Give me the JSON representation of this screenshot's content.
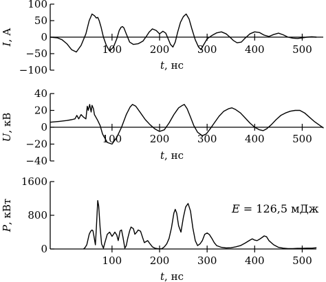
{
  "chart_data": [
    {
      "type": "line",
      "ylabel": "I, А",
      "xlabel": "t, нс",
      "xlim": [
        -30,
        550
      ],
      "ylim": [
        -100,
        100
      ],
      "xticks": [
        100,
        200,
        300,
        400,
        500
      ],
      "yticks": [
        -100,
        -50,
        0,
        50,
        100
      ],
      "ytick_labels": [
        "−100",
        "−50",
        "0",
        "50",
        "100"
      ],
      "zero_line": true,
      "series": [
        {
          "x": [
            -30,
            -15,
            -5,
            5,
            15,
            25,
            35,
            45,
            52,
            58,
            63,
            67,
            70,
            73,
            77,
            82,
            88,
            95,
            103,
            110,
            115,
            119,
            122,
            125,
            130,
            137,
            145,
            155,
            165,
            172,
            178,
            185,
            193,
            200,
            207,
            213,
            218,
            223,
            228,
            233,
            238,
            244,
            250,
            256,
            262,
            268,
            275,
            282,
            287,
            292,
            300,
            310,
            320,
            330,
            340,
            348,
            355,
            363,
            372,
            380,
            390,
            400,
            410,
            420,
            430,
            440,
            450,
            460,
            470,
            480,
            490,
            500,
            510,
            520,
            530
          ],
          "y": [
            0,
            -2,
            -8,
            -20,
            -38,
            -45,
            -25,
            10,
            50,
            70,
            65,
            58,
            60,
            50,
            30,
            0,
            -25,
            -42,
            -30,
            -5,
            20,
            30,
            32,
            28,
            10,
            -15,
            -22,
            -20,
            -12,
            2,
            15,
            25,
            20,
            10,
            18,
            12,
            -5,
            -22,
            -30,
            -15,
            15,
            45,
            62,
            70,
            55,
            25,
            -8,
            -30,
            -38,
            -25,
            -5,
            5,
            13,
            16,
            10,
            0,
            -10,
            -17,
            -15,
            -3,
            10,
            16,
            14,
            6,
            2,
            8,
            12,
            7,
            0,
            -3,
            -4,
            -2,
            0,
            1,
            0
          ]
        }
      ]
    },
    {
      "type": "line",
      "ylabel": "U, кВ",
      "xlabel": "t, нс",
      "xlim": [
        -30,
        550
      ],
      "ylim": [
        -40,
        40
      ],
      "xticks": [
        100,
        200,
        300,
        400,
        500
      ],
      "yticks": [
        -40,
        -20,
        0,
        20,
        40
      ],
      "ytick_labels": [
        "−40",
        "−20",
        "0",
        "20",
        "40"
      ],
      "zero_line": true,
      "series": [
        {
          "x": [
            -30,
            -10,
            5,
            15,
            22,
            26,
            30,
            35,
            40,
            45,
            48,
            50,
            53,
            56,
            58,
            61,
            63,
            66,
            70,
            75,
            80,
            90,
            100,
            110,
            120,
            130,
            138,
            143,
            150,
            160,
            170,
            180,
            190,
            200,
            210,
            220,
            230,
            240,
            248,
            252,
            258,
            265,
            272,
            280,
            290,
            298,
            305,
            315,
            325,
            335,
            345,
            352,
            360,
            370,
            380,
            390,
            400,
            410,
            418,
            425,
            435,
            445,
            455,
            465,
            475,
            485,
            495,
            505,
            515,
            525,
            535,
            545
          ],
          "y": [
            6,
            7,
            8,
            9,
            10,
            14,
            10,
            15,
            12,
            10,
            25,
            20,
            27,
            18,
            26,
            22,
            15,
            12,
            8,
            2,
            -8,
            -18,
            -20,
            -12,
            0,
            15,
            24,
            27,
            25,
            17,
            9,
            3,
            -2,
            -5,
            -3,
            5,
            15,
            23,
            26,
            27,
            22,
            12,
            2,
            -6,
            -10,
            -8,
            -3,
            5,
            13,
            19,
            22,
            23,
            21,
            17,
            11,
            5,
            0,
            -3,
            -4,
            -2,
            3,
            9,
            14,
            17,
            19,
            20,
            20,
            17,
            12,
            7,
            3,
            -1
          ]
        }
      ]
    },
    {
      "type": "line",
      "ylabel": "P, кВт",
      "xlabel": "t, нс",
      "xlim": [
        -30,
        550
      ],
      "ylim": [
        0,
        1600
      ],
      "xticks": [
        100,
        200,
        300,
        400,
        500
      ],
      "yticks": [
        0,
        800,
        1600
      ],
      "ytick_labels": [
        "0",
        "800",
        "1600"
      ],
      "annotation": "E = 126,5 мДж",
      "series": [
        {
          "x": [
            40,
            43,
            47,
            50,
            52,
            55,
            58,
            60,
            62,
            65,
            67,
            70,
            72,
            75,
            78,
            82,
            85,
            90,
            95,
            100,
            103,
            106,
            110,
            113,
            117,
            120,
            123,
            127,
            130,
            133,
            137,
            140,
            145,
            148,
            152,
            155,
            160,
            165,
            168,
            172,
            175,
            180,
            185,
            190,
            195,
            200,
            205,
            210,
            215,
            220,
            225,
            230,
            233,
            236,
            240,
            245,
            250,
            255,
            260,
            265,
            270,
            275,
            280,
            285,
            290,
            295,
            300,
            305,
            310,
            315,
            320,
            330,
            340,
            350,
            360,
            370,
            380,
            390,
            395,
            400,
            405,
            410,
            415,
            420,
            425,
            430,
            440,
            450,
            460,
            470,
            480,
            490,
            500,
            510,
            520,
            530
          ],
          "y": [
            0,
            30,
            100,
            250,
            350,
            420,
            450,
            430,
            300,
            100,
            500,
            1150,
            1020,
            500,
            120,
            20,
            150,
            350,
            400,
            300,
            350,
            400,
            330,
            200,
            430,
            450,
            280,
            20,
            80,
            250,
            430,
            520,
            480,
            350,
            400,
            450,
            420,
            250,
            150,
            180,
            200,
            120,
            50,
            20,
            10,
            0,
            10,
            50,
            120,
            250,
            500,
            850,
            940,
            850,
            550,
            400,
            750,
            1000,
            1080,
            900,
            500,
            200,
            80,
            120,
            200,
            350,
            380,
            340,
            250,
            150,
            80,
            40,
            25,
            30,
            50,
            80,
            140,
            210,
            240,
            210,
            200,
            230,
            270,
            310,
            290,
            200,
            100,
            40,
            20,
            10,
            10,
            15,
            15,
            20,
            20,
            30
          ]
        }
      ]
    }
  ]
}
